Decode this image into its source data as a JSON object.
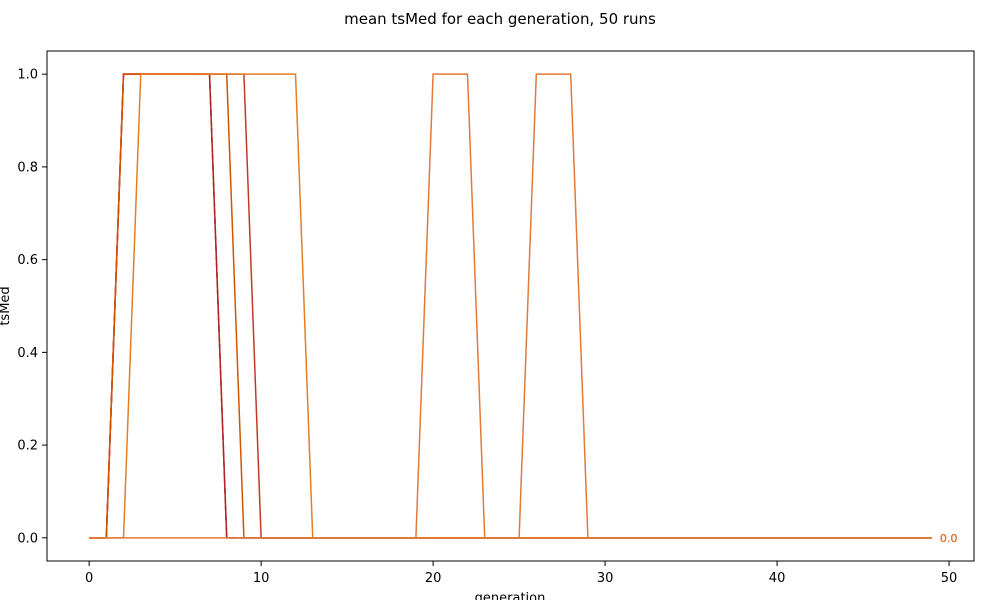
{
  "chart_data": {
    "type": "line",
    "title": "mean tsMed for each generation, 50 runs",
    "xlabel": "generation",
    "ylabel": "tsMed",
    "xlim": [
      -2.45,
      51.45
    ],
    "ylim": [
      -0.05,
      1.05
    ],
    "xticks": [
      "0",
      "10",
      "20",
      "30",
      "40",
      "50"
    ],
    "xtick_values": [
      0,
      10,
      20,
      30,
      40,
      50
    ],
    "yticks": [
      "0.0",
      "0.2",
      "0.4",
      "0.6",
      "0.8",
      "1.0"
    ],
    "ytick_values": [
      0,
      0.2,
      0.4,
      0.6,
      0.8,
      1.0
    ],
    "grid": false,
    "series": [
      {
        "color": "#8b1a1a",
        "dashed": true,
        "end_label": "",
        "points": [
          [
            0,
            0
          ],
          [
            1,
            0
          ],
          [
            2,
            1
          ],
          [
            7,
            1
          ],
          [
            8,
            0
          ],
          [
            49,
            0
          ]
        ]
      },
      {
        "color": "#b22222",
        "dashed": false,
        "end_label": "",
        "points": [
          [
            0,
            0
          ],
          [
            1,
            0
          ],
          [
            2,
            1
          ],
          [
            7,
            1
          ],
          [
            8,
            0
          ],
          [
            49,
            0
          ]
        ]
      },
      {
        "color": "#c0392b",
        "dashed": false,
        "end_label": "",
        "points": [
          [
            0,
            0
          ],
          [
            1,
            0
          ],
          [
            2,
            1
          ],
          [
            9,
            1
          ],
          [
            10,
            0
          ],
          [
            49,
            0
          ]
        ]
      },
      {
        "color": "#d35400",
        "dashed": false,
        "end_label": "",
        "points": [
          [
            0,
            0
          ],
          [
            1,
            0
          ],
          [
            2,
            1
          ],
          [
            8,
            1
          ],
          [
            9,
            0
          ],
          [
            49,
            0
          ]
        ]
      },
      {
        "color": "#e67e22",
        "dashed": false,
        "end_label": "",
        "points": [
          [
            0,
            0
          ],
          [
            2,
            0
          ],
          [
            3,
            1
          ],
          [
            12,
            1
          ],
          [
            13,
            0
          ],
          [
            49,
            0
          ]
        ]
      },
      {
        "color": "#e07b39",
        "dashed": false,
        "end_label": "",
        "points": [
          [
            0,
            0
          ],
          [
            19,
            0
          ],
          [
            20,
            1
          ],
          [
            22,
            1
          ],
          [
            23,
            0
          ],
          [
            25,
            0
          ],
          [
            26,
            1
          ],
          [
            28,
            1
          ],
          [
            29,
            0
          ],
          [
            49,
            0
          ]
        ]
      }
    ],
    "end_labels": [
      "0.0",
      "0.0",
      "0.0",
      "0.0",
      "0.0",
      "0.0"
    ]
  }
}
